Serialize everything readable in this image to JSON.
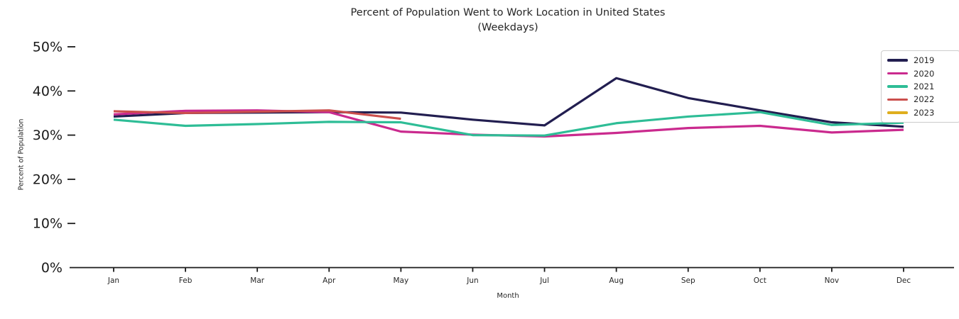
{
  "title": {
    "line1": "Percent of Population Went to Work Location in United States",
    "line2": "(Weekdays)"
  },
  "chart_data": {
    "type": "line",
    "title": "Percent of Population Went to Work Location in United States (Weekdays)",
    "xlabel": "Month",
    "ylabel": "Percent of Population",
    "categories": [
      "Jan",
      "Feb",
      "Mar",
      "Apr",
      "May",
      "Jun",
      "Jul",
      "Aug",
      "Sep",
      "Oct",
      "Nov",
      "Dec"
    ],
    "y_tick_labels": [
      "0%",
      "10%",
      "20%",
      "30%",
      "40%",
      "50%"
    ],
    "ylim": [
      0,
      50
    ],
    "grid": false,
    "legend_position": "upper right",
    "series": [
      {
        "name": "2019",
        "color": "#221e50",
        "values": [
          34.2,
          35.0,
          35.1,
          35.2,
          35.1,
          33.5,
          32.2,
          42.9,
          38.4,
          35.6,
          32.9,
          31.9
        ]
      },
      {
        "name": "2020",
        "color": "#ca2a8e",
        "values": [
          34.7,
          35.5,
          35.6,
          35.2,
          30.8,
          30.1,
          29.7,
          30.5,
          31.6,
          32.1,
          30.6,
          31.2
        ]
      },
      {
        "name": "2021",
        "color": "#2ebd96",
        "values": [
          33.5,
          32.1,
          32.5,
          33.0,
          32.9,
          30.0,
          29.9,
          32.7,
          34.2,
          35.2,
          32.3,
          32.8
        ]
      },
      {
        "name": "2022",
        "color": "#cb4f4d",
        "values": [
          35.4,
          35.0,
          35.3,
          35.6,
          33.7
        ]
      },
      {
        "name": "2023",
        "color": "#dfae1e",
        "values": []
      }
    ],
    "axis_color": "#1a1a1a"
  }
}
